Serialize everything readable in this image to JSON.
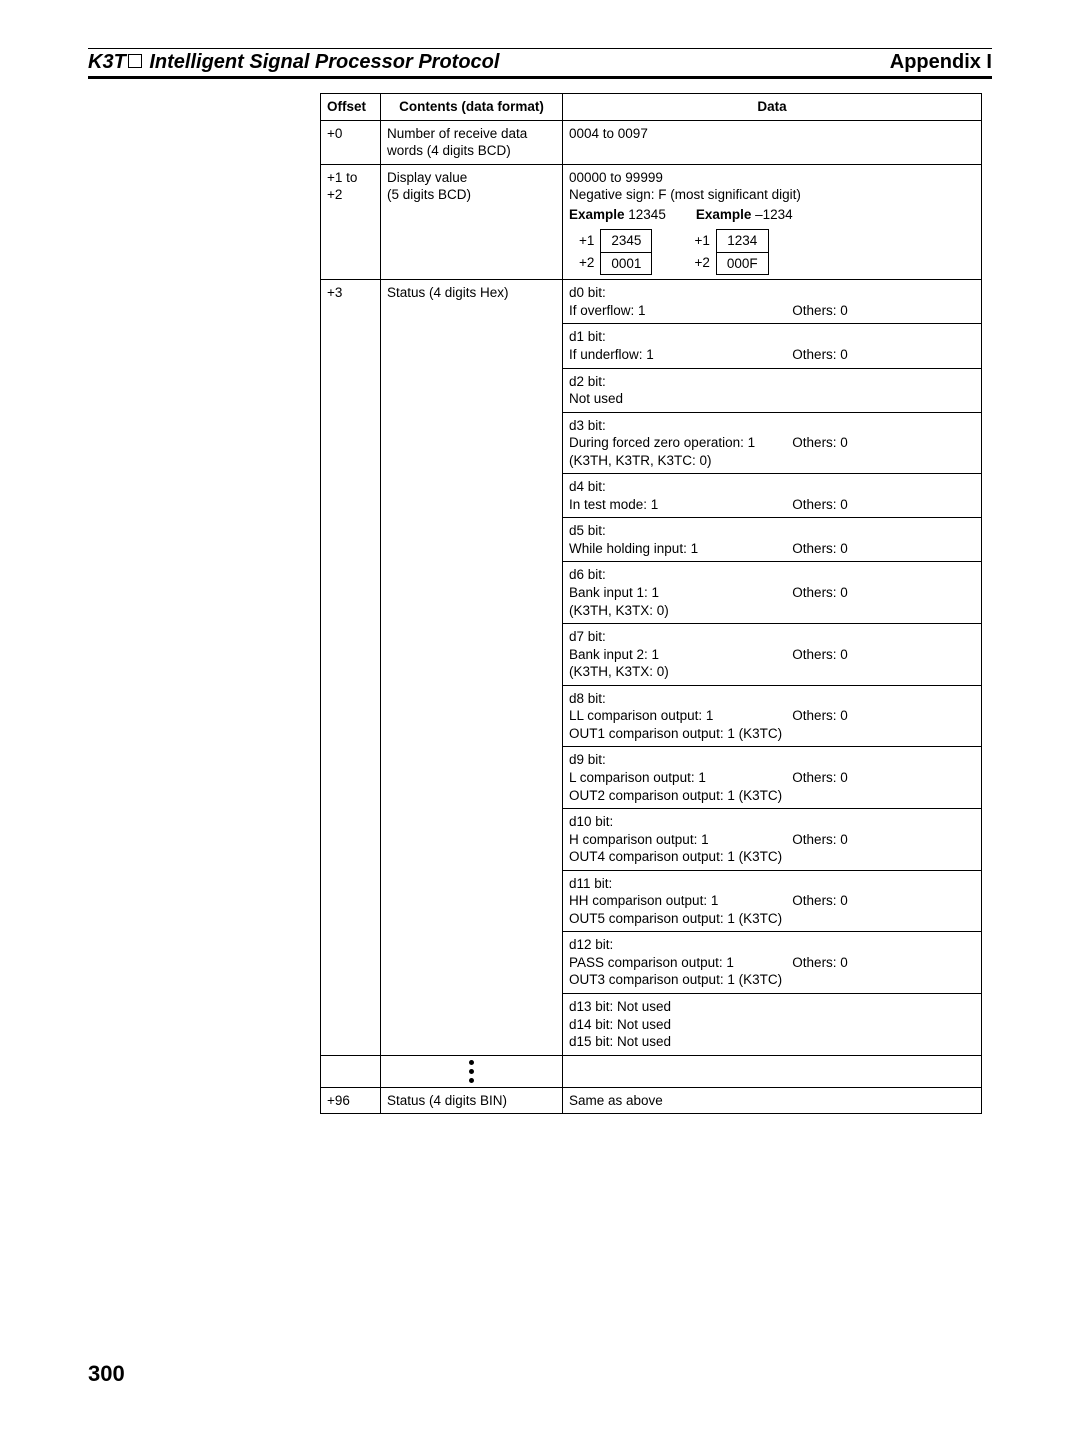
{
  "header": {
    "title_left_a": "K3T",
    "title_left_b": "Intelligent Signal Processor Protocol",
    "title_right": "Appendix I"
  },
  "page_number": "300",
  "table": {
    "headers": {
      "offset": "Offset",
      "contents": "Contents (data format)",
      "data": "Data"
    },
    "rows": [
      {
        "offset": "+0",
        "contents": "Number of receive data words (4 digits BCD)",
        "data_simple": "0004 to 0097"
      },
      {
        "offset": "+1 to +2",
        "contents": "Display value\n(5 digits BCD)",
        "range": "00000 to 99999",
        "neg_note": "Negative sign: F (most significant digit)",
        "ex1_label": "Example",
        "ex1_val": "12345",
        "ex2_label": "Example",
        "ex2_val": "–1234",
        "mini1": [
          [
            "+1",
            "2345"
          ],
          [
            "+2",
            "0001"
          ]
        ],
        "mini2": [
          [
            "+1",
            "1234"
          ],
          [
            "+2",
            "000F"
          ]
        ]
      },
      {
        "offset": "+3",
        "contents": "Status (4 digits Hex)",
        "bits": [
          {
            "title": "d0 bit:",
            "lines": [
              {
                "l": "If overflow: 1",
                "r": "Others: 0"
              }
            ]
          },
          {
            "title": "d1 bit:",
            "lines": [
              {
                "l": "If underflow: 1",
                "r": "Others: 0"
              }
            ]
          },
          {
            "title": "d2 bit:",
            "lines": [
              {
                "l": "Not used",
                "r": ""
              }
            ]
          },
          {
            "title": "d3 bit:",
            "lines": [
              {
                "l": "During forced zero operation: 1",
                "r": "Others: 0"
              },
              {
                "l": "(K3TH, K3TR, K3TC: 0)",
                "r": ""
              }
            ]
          },
          {
            "title": "d4 bit:",
            "lines": [
              {
                "l": "In test mode: 1",
                "r": "Others: 0"
              }
            ]
          },
          {
            "title": "d5 bit:",
            "lines": [
              {
                "l": "While holding input: 1",
                "r": "Others: 0"
              }
            ]
          },
          {
            "title": "d6 bit:",
            "lines": [
              {
                "l": "Bank input 1: 1",
                "r": "Others: 0"
              },
              {
                "l": "(K3TH, K3TX: 0)",
                "r": ""
              }
            ]
          },
          {
            "title": "d7 bit:",
            "lines": [
              {
                "l": "Bank input 2: 1",
                "r": "Others: 0"
              },
              {
                "l": "(K3TH, K3TX: 0)",
                "r": ""
              }
            ]
          },
          {
            "title": "d8 bit:",
            "lines": [
              {
                "l": "LL comparison output: 1",
                "r": "Others: 0"
              },
              {
                "l": "OUT1 comparison output: 1 (K3TC)",
                "r": ""
              }
            ]
          },
          {
            "title": "d9 bit:",
            "lines": [
              {
                "l": "L comparison output: 1",
                "r": "Others: 0"
              },
              {
                "l": "OUT2 comparison output: 1 (K3TC)",
                "r": ""
              }
            ]
          },
          {
            "title": "d10 bit:",
            "lines": [
              {
                "l": "H comparison output: 1",
                "r": "Others: 0"
              },
              {
                "l": "OUT4 comparison output: 1 (K3TC)",
                "r": ""
              }
            ]
          },
          {
            "title": "d11 bit:",
            "lines": [
              {
                "l": "HH comparison output: 1",
                "r": "Others: 0"
              },
              {
                "l": "OUT5 comparison output: 1 (K3TC)",
                "r": ""
              }
            ]
          },
          {
            "title": "d12 bit:",
            "lines": [
              {
                "l": "PASS comparison output: 1",
                "r": "Others: 0"
              },
              {
                "l": "OUT3 comparison output: 1 (K3TC)",
                "r": ""
              }
            ]
          },
          {
            "title": "",
            "lines": [
              {
                "l": "d13 bit: Not used",
                "r": ""
              },
              {
                "l": "d14 bit: Not used",
                "r": ""
              },
              {
                "l": "d15 bit: Not used",
                "r": ""
              }
            ]
          }
        ]
      },
      {
        "offset": "+96",
        "contents": "Status (4 digits BIN)",
        "data_simple": "Same as above"
      }
    ]
  }
}
